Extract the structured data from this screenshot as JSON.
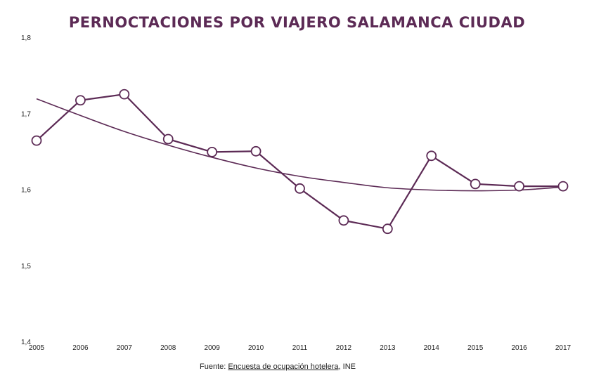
{
  "chart_data": {
    "type": "line",
    "title": "PERNOCTACIONES POR VIAJERO SALAMANCA CIUDAD",
    "xlabel": "",
    "ylabel": "",
    "categories": [
      "2005",
      "2006",
      "2007",
      "2008",
      "2009",
      "2010",
      "2011",
      "2012",
      "2013",
      "2014",
      "2015",
      "2016",
      "2017"
    ],
    "series": [
      {
        "values": [
          1.665,
          1.718,
          1.726,
          1.667,
          1.65,
          1.651,
          1.602,
          1.56,
          1.549,
          1.645,
          1.608,
          1.605,
          1.605
        ]
      }
    ],
    "trendline": {
      "type": "polynomial",
      "values": [
        1.72,
        1.698,
        1.677,
        1.659,
        1.643,
        1.629,
        1.618,
        1.61,
        1.603,
        1.6,
        1.599,
        1.6,
        1.604
      ]
    },
    "ylim": [
      1.4,
      1.8
    ],
    "yticks": [
      "1,4",
      "1,5",
      "1,6",
      "1,7",
      "1,8"
    ],
    "grid": false,
    "colors": {
      "line": "#5c2a55",
      "marker_fill": "#ffffff",
      "title": "#5c2a55"
    }
  },
  "source": {
    "prefix": "Fuente: ",
    "link_text": "Encuesta de ocupación hotelera",
    "suffix": ", INE"
  }
}
